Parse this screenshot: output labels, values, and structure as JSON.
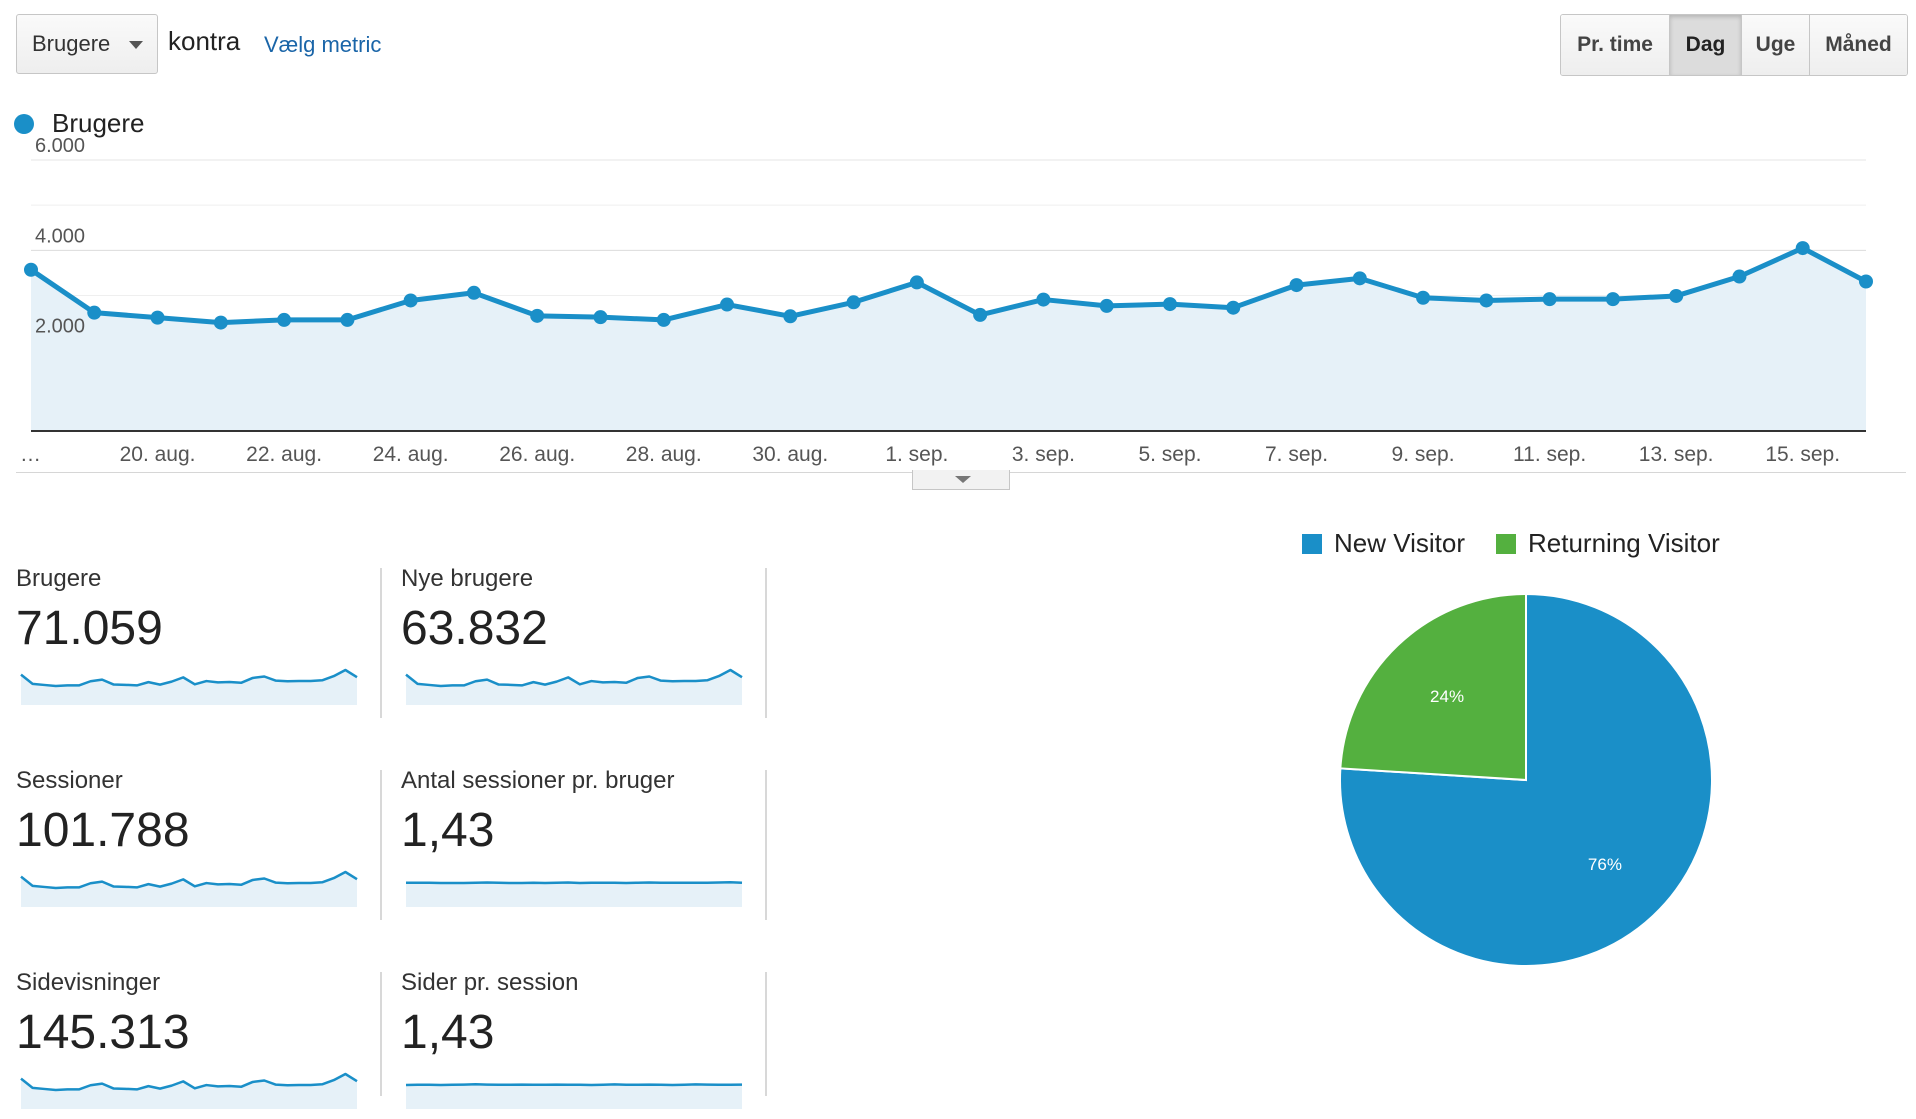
{
  "toolbar": {
    "metric_select": "Brugere",
    "vs_text": "kontra",
    "choose_metric_link": "Vælg metric",
    "granularity": [
      "Pr. time",
      "Dag",
      "Uge",
      "Måned"
    ],
    "active_granularity": "Dag"
  },
  "main_chart_legend": "Brugere",
  "colors": {
    "series": "#1a8fc8",
    "fill": "#e6f1f8",
    "new": "#1a8fc8",
    "returning": "#54b03f"
  },
  "chart_data": [
    {
      "type": "line",
      "series": [
        {
          "name": "Brugere",
          "values": [
            3570,
            2620,
            2510,
            2400,
            2460,
            2460,
            2890,
            3060,
            2550,
            2520,
            2460,
            2800,
            2540,
            2850,
            3290,
            2570,
            2910,
            2770,
            2810,
            2730,
            3230,
            3380,
            2950,
            2890,
            2920,
            2920,
            2990,
            3420,
            4050,
            3310
          ]
        }
      ],
      "y_ticks": [
        "6.000",
        "4.000",
        "2.000"
      ],
      "y_tick_values": [
        6000,
        4000,
        2000
      ],
      "ylim": [
        0,
        6000
      ],
      "x_labels": [
        "…",
        "20. aug.",
        "22. aug.",
        "24. aug.",
        "26. aug.",
        "28. aug.",
        "30. aug.",
        "1. sep.",
        "3. sep.",
        "5. sep.",
        "7. sep.",
        "9. sep.",
        "11. sep.",
        "13. sep.",
        "15. sep."
      ],
      "x_label_indices": [
        0,
        2,
        4,
        6,
        8,
        10,
        12,
        14,
        16,
        18,
        20,
        22,
        24,
        26,
        28
      ],
      "grid": true
    },
    {
      "type": "pie",
      "series": [
        {
          "name": "New Visitor",
          "value": 76
        },
        {
          "name": "Returning Visitor",
          "value": 24
        }
      ],
      "slice_labels": [
        "76%",
        "24%"
      ],
      "legend_position": "top"
    }
  ],
  "scorecards": [
    {
      "label": "Brugere",
      "value": "71.059",
      "spark": [
        3570,
        2620,
        2510,
        2400,
        2460,
        2460,
        2890,
        3060,
        2550,
        2520,
        2460,
        2800,
        2540,
        2850,
        3290,
        2570,
        2910,
        2770,
        2810,
        2730,
        3230,
        3380,
        2950,
        2890,
        2920,
        2920,
        2990,
        3420,
        4050,
        3310
      ]
    },
    {
      "label": "Nye brugere",
      "value": "63.832",
      "spark": [
        3570,
        2620,
        2510,
        2400,
        2460,
        2460,
        2890,
        3060,
        2550,
        2520,
        2460,
        2800,
        2540,
        2850,
        3290,
        2570,
        2910,
        2770,
        2810,
        2730,
        3230,
        3380,
        2950,
        2890,
        2920,
        2920,
        2990,
        3420,
        4050,
        3310
      ]
    },
    {
      "label": "Sessioner",
      "value": "101.788",
      "spark": [
        3570,
        2620,
        2510,
        2400,
        2460,
        2460,
        2890,
        3060,
        2550,
        2520,
        2460,
        2800,
        2540,
        2850,
        3290,
        2570,
        2910,
        2770,
        2810,
        2730,
        3230,
        3380,
        2950,
        2890,
        2920,
        2920,
        2990,
        3420,
        4050,
        3310
      ]
    },
    {
      "label": "Antal sessioner pr. bruger",
      "value": "1,43",
      "spark": [
        1.43,
        1.43,
        1.43,
        1.42,
        1.42,
        1.42,
        1.43,
        1.44,
        1.43,
        1.42,
        1.42,
        1.43,
        1.42,
        1.43,
        1.44,
        1.42,
        1.43,
        1.43,
        1.43,
        1.42,
        1.43,
        1.44,
        1.43,
        1.43,
        1.43,
        1.43,
        1.43,
        1.44,
        1.45,
        1.43
      ]
    },
    {
      "label": "Sidevisninger",
      "value": "145.313",
      "spark": [
        3570,
        2620,
        2510,
        2400,
        2460,
        2460,
        2890,
        3060,
        2550,
        2520,
        2460,
        2800,
        2540,
        2850,
        3290,
        2570,
        2910,
        2770,
        2810,
        2730,
        3230,
        3380,
        2950,
        2890,
        2920,
        2920,
        2990,
        3420,
        4050,
        3310
      ]
    },
    {
      "label": "Sider pr. session",
      "value": "1,43",
      "spark": [
        1.43,
        1.44,
        1.44,
        1.43,
        1.44,
        1.45,
        1.47,
        1.45,
        1.44,
        1.44,
        1.45,
        1.44,
        1.44,
        1.45,
        1.44,
        1.44,
        1.43,
        1.44,
        1.46,
        1.44,
        1.44,
        1.45,
        1.44,
        1.43,
        1.44,
        1.46,
        1.45,
        1.44,
        1.44,
        1.45
      ]
    }
  ]
}
